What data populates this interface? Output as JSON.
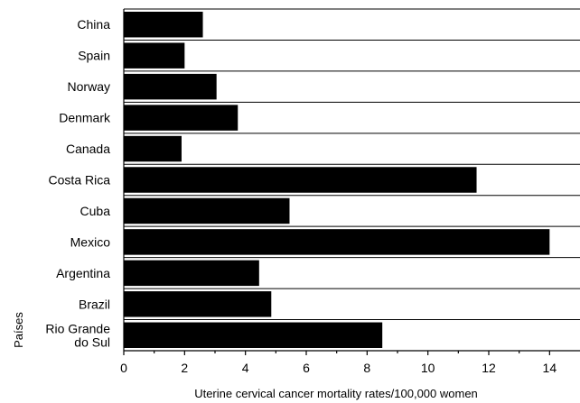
{
  "chart_data": {
    "type": "bar",
    "orientation": "horizontal",
    "categories": [
      "China",
      "Spain",
      "Norway",
      "Denmark",
      "Canada",
      "Costa Rica",
      "Cuba",
      "Mexico",
      "Argentina",
      "Brazil",
      "Rio Grande do Sul"
    ],
    "category_lines": [
      [
        "China"
      ],
      [
        "Spain"
      ],
      [
        "Norway"
      ],
      [
        "Denmark"
      ],
      [
        "Canada"
      ],
      [
        "Costa Rica"
      ],
      [
        "Cuba"
      ],
      [
        "Mexico"
      ],
      [
        "Argentina"
      ],
      [
        "Brazil"
      ],
      [
        "Rio Grande",
        "do Sul"
      ]
    ],
    "values": [
      2.6,
      2.0,
      3.05,
      3.75,
      1.9,
      11.6,
      5.45,
      14.0,
      4.45,
      4.85,
      8.5
    ],
    "xlabel": "Uterine cervical cancer mortality rates/100,000 women",
    "ylabel": "Países",
    "xlim": [
      0,
      15
    ],
    "xticks": [
      0,
      2,
      4,
      6,
      8,
      10,
      12,
      14
    ],
    "bar_color": "#000000",
    "grid": "horizontal separators between categories",
    "legend": "none"
  }
}
